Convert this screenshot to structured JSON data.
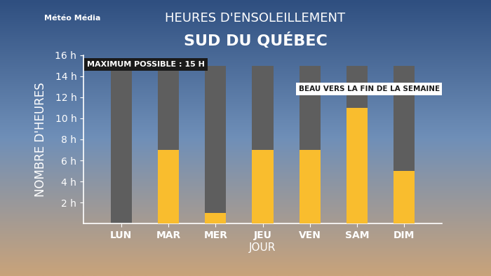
{
  "chart_data": {
    "type": "bar",
    "title": "HEURES D'ENSOLEILLEMENT",
    "subtitle": "SUD DU QUÉBEC",
    "logo": "Météo Média",
    "x_label": "JOUR",
    "y_label": "NOMBRE D'HEURES",
    "categories": [
      "LUN",
      "MAR",
      "MER",
      "JEU",
      "VEN",
      "SAM",
      "DIM"
    ],
    "values": [
      0,
      7,
      1,
      7,
      7,
      11,
      5
    ],
    "color": "#f9bd2e",
    "maximum": 15,
    "maximum_color": "#5e5e5e",
    "maximum_label": "MAXIMUM POSSIBLE : 15 H",
    "annotation": "BEAU VERS LA FIN DE LA SEMAINE",
    "ylim": [
      0,
      16
    ],
    "yticks": [
      {
        "value": 2,
        "label": "2 h"
      },
      {
        "value": 4,
        "label": "4 h"
      },
      {
        "value": 6,
        "label": "6 h"
      },
      {
        "value": 8,
        "label": "8 h"
      },
      {
        "value": 10,
        "label": "10 h"
      },
      {
        "value": 12,
        "label": "12 h"
      },
      {
        "value": 14,
        "label": "14 h"
      },
      {
        "value": 16,
        "label": "16 h"
      }
    ],
    "grid": false
  }
}
